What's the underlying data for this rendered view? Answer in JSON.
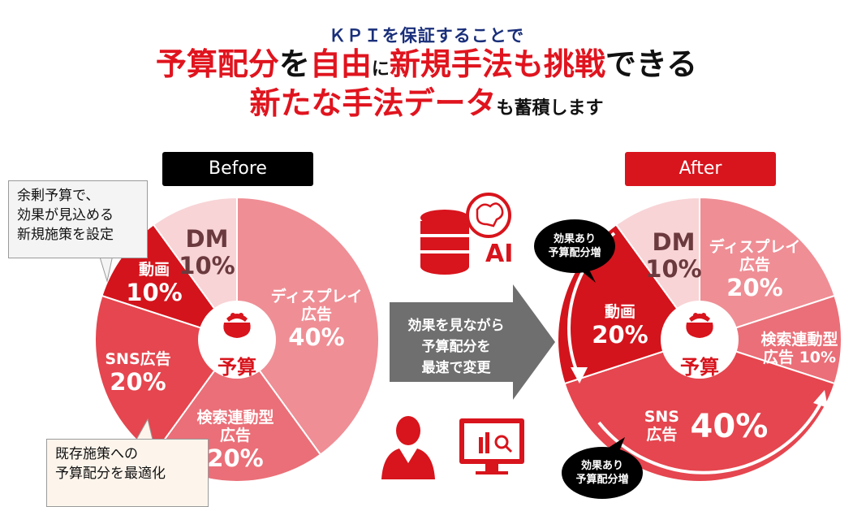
{
  "header": {
    "line1": "ＫＰＩを保証することで",
    "line2": {
      "a": "予算配分",
      "b": "を",
      "c": "自由",
      "d": "に",
      "e": "新規手法も挑戦",
      "f": "できる"
    },
    "line3": {
      "a": "新たな手法データ",
      "b": "も蓄積します"
    }
  },
  "before": {
    "title": "Before",
    "center_label": "予算",
    "slices": [
      {
        "name": "ディスプレイ広告",
        "line1": "ディスプレイ",
        "line2": "広告",
        "pct": "40%",
        "value": 40,
        "color": "#ef8e95"
      },
      {
        "name": "検索連動型広告",
        "line1": "検索連動型",
        "line2": "広告",
        "pct": "20%",
        "value": 20,
        "color": "#ea6f78"
      },
      {
        "name": "SNS広告",
        "line1": "SNS広告",
        "pct": "20%",
        "value": 20,
        "color": "#e5464f"
      },
      {
        "name": "動画",
        "line1": "動画",
        "pct": "10%",
        "value": 10,
        "color": "#d3141c"
      },
      {
        "name": "DM",
        "line1": "DM",
        "pct": "10%",
        "value": 10,
        "color": "#f8d4d6"
      }
    ]
  },
  "after": {
    "title": "After",
    "center_label": "予算",
    "slices": [
      {
        "name": "ディスプレイ広告",
        "line1": "ディスプレイ",
        "line2": "広告",
        "pct": "20%",
        "value": 20,
        "color": "#ef8e95"
      },
      {
        "name": "検索連動型広告",
        "line1": "検索連動型",
        "line2": "広告 10%",
        "pct": "",
        "value": 10,
        "color": "#ea6f78"
      },
      {
        "name": "SNS広告",
        "line1": "SNS",
        "line2": "広告",
        "pct": "40%",
        "value": 40,
        "color": "#e5464f"
      },
      {
        "name": "動画",
        "line1": "動画",
        "pct": "20%",
        "value": 20,
        "color": "#d3141c"
      },
      {
        "name": "DM",
        "line1": "DM",
        "pct": "10%",
        "value": 10,
        "color": "#f8d4d6"
      }
    ],
    "bubble_top": {
      "line1": "効果あり",
      "line2": "予算配分増"
    },
    "bubble_bottom": {
      "line1": "効果あり",
      "line2": "予算配分増"
    }
  },
  "callouts": {
    "top": {
      "line1": "余剰予算で、",
      "line2": "効果が見込める",
      "line3": "新規施策を設定"
    },
    "bottom": {
      "line1": "既存施策への",
      "line2": "予算配分を最適化"
    }
  },
  "middle": {
    "ai_label": "AI",
    "arrow_text": {
      "line1": "効果を見ながら",
      "line2": "予算配分を",
      "line3": "最速で変更"
    }
  },
  "icons": [
    "database-icon",
    "brain-icon",
    "person-icon",
    "monitor-chart-icon",
    "purse-icon"
  ],
  "colors": {
    "accent_red": "#d8141c",
    "headline_navy": "#1a2f7a",
    "arrow_gray": "#6f6f6f"
  }
}
